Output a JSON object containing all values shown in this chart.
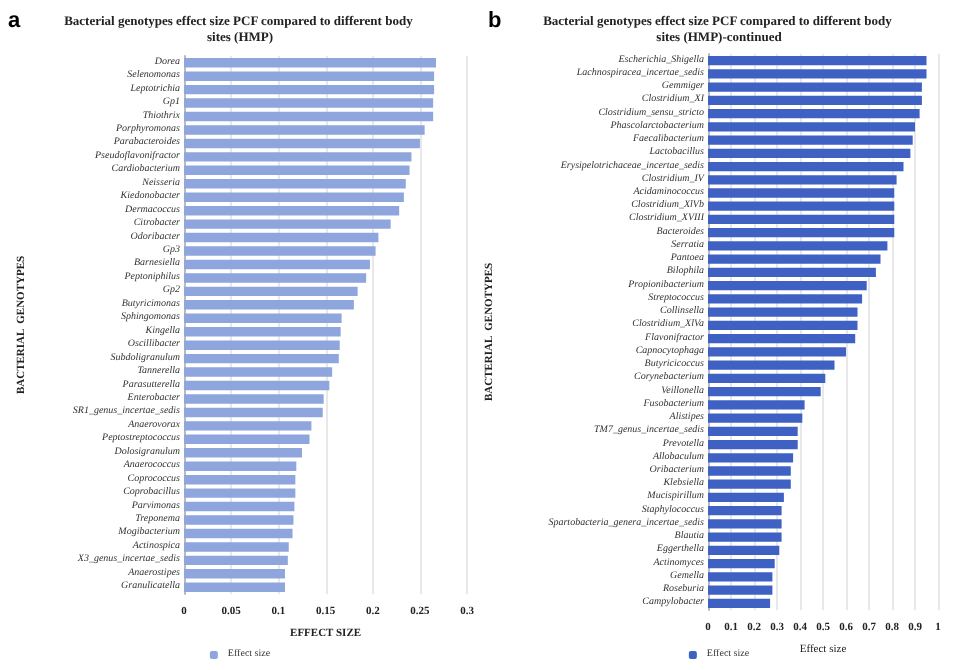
{
  "chart_data": [
    {
      "type": "bar",
      "orientation": "horizontal",
      "title": "Bacterial genotypes effect size PCF compared to different body sites (HMP)",
      "xlabel": "EFFECT SIZE",
      "ylabel": "BACTERIAL  GENOTYPES",
      "annotations": [
        "a"
      ],
      "categories": [
        "Dorea",
        "Selenomonas",
        "Leptotrichia",
        "Gp1",
        "Thiothrix",
        "Porphyromonas",
        "Parabacteroides",
        "Pseudoflavonifractor",
        "Cardiobacterium",
        "Neisseria",
        "Kiedonobacter",
        "Dermacoccus",
        "Citrobacter",
        "Odoribacter",
        "Gp3",
        "Barnesiella",
        "Peptoniphilus",
        "Gp2",
        "Butyricimonas",
        "Sphingomonas",
        "Kingella",
        "Oscillibacter",
        "Subdoligranulum",
        "Tannerella",
        "Parasutterella",
        "Enterobacter",
        "SR1_genus_incertae_sedis",
        "Anaerovorax",
        "Peptostreptococcus",
        "Dolosigranulum",
        "Anaerococcus",
        "Coprococcus",
        "Coprobacillus",
        "Parvimonas",
        "Treponema",
        "Mogibacterium",
        "Actinospica",
        "X3_genus_incertae_sedis",
        "Anaerostipes",
        "Granulicatella"
      ],
      "series": [
        {
          "name": "Effect size",
          "color": "#8ea6dd",
          "values": [
            0.267,
            0.265,
            0.265,
            0.264,
            0.264,
            0.255,
            0.25,
            0.241,
            0.239,
            0.235,
            0.233,
            0.228,
            0.219,
            0.206,
            0.203,
            0.197,
            0.193,
            0.184,
            0.18,
            0.167,
            0.166,
            0.165,
            0.164,
            0.157,
            0.154,
            0.148,
            0.147,
            0.135,
            0.133,
            0.125,
            0.119,
            0.118,
            0.118,
            0.117,
            0.116,
            0.115,
            0.111,
            0.11,
            0.107,
            0.107
          ]
        }
      ],
      "xlim": [
        0,
        0.3
      ],
      "xticks": [
        0,
        0.05,
        0.1,
        0.15,
        0.2,
        0.25,
        0.3
      ],
      "grid": "x",
      "legend": "bottom"
    },
    {
      "type": "bar",
      "orientation": "horizontal",
      "title": "Bacterial genotypes effect size PCF compared to different body sites (HMP)-continued",
      "xlabel": "Effect size",
      "ylabel": "BACTERIAL  GENOTYPES",
      "annotations": [
        "b"
      ],
      "categories": [
        "Escherichia_Shigella",
        "Lachnospiracea_incertae_sedis",
        "Gemmiger",
        "Clostridium_XI",
        "Clostridium_sensu_stricto",
        "Phascolarctobacterium",
        "Faecalibacterium",
        "Lactobacillus",
        "Erysipelotrichaceae_incertae_sedis",
        "Clostridium_IV",
        "Acidaminococcus",
        "Clostridium_XlVb",
        "Clostridium_XVIII",
        "Bacteroides",
        "Serratia",
        "Pantoea",
        "Bilophila",
        "Propionibacterium",
        "Streptococcus",
        "Collinsella",
        "Clostridium_XlVa",
        "Flavonifractor",
        "Capnocytophaga",
        "Butyricicoccus",
        "Corynebacterium",
        "Veillonella",
        "Fusobacterium",
        "Alistipes",
        "TM7_genus_incertae_sedis",
        "Prevotella",
        "Allobaculum",
        "Oribacterium",
        "Klebsiella",
        "Mucispirillum",
        "Staphylococcus",
        "Spartobacteria_genera_incertae_sedis",
        "Blautia",
        "Eggerthella",
        "Actinomyces",
        "Gemella",
        "Roseburia",
        "Campylobacter"
      ],
      "series": [
        {
          "name": "Effect size",
          "color": "#3f61c4",
          "values": [
            0.95,
            0.95,
            0.93,
            0.93,
            0.92,
            0.9,
            0.89,
            0.88,
            0.85,
            0.82,
            0.81,
            0.81,
            0.81,
            0.81,
            0.78,
            0.75,
            0.73,
            0.69,
            0.67,
            0.65,
            0.65,
            0.64,
            0.6,
            0.55,
            0.51,
            0.49,
            0.42,
            0.41,
            0.39,
            0.39,
            0.37,
            0.36,
            0.36,
            0.33,
            0.32,
            0.32,
            0.32,
            0.31,
            0.29,
            0.28,
            0.28,
            0.27
          ]
        }
      ],
      "xlim": [
        0,
        1
      ],
      "xticks": [
        0,
        0.1,
        0.2,
        0.3,
        0.4,
        0.5,
        0.6,
        0.7,
        0.8,
        0.9,
        1
      ],
      "grid": "x",
      "legend": "bottom"
    }
  ]
}
